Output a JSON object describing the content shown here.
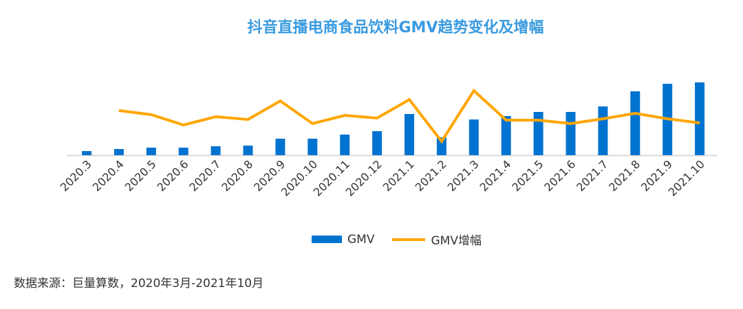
{
  "title": "抖音直播电商食品饮料GMV趋势变化及增幅",
  "source": "数据来源：巨量算数，2020年3月-2021年10月",
  "chart_data": {
    "type": "bar+line",
    "title": "抖音直播电商食品饮料GMV趋势变化及增幅",
    "categories": [
      "2020.3",
      "2020.4",
      "2020.5",
      "2020.6",
      "2020.7",
      "2020.8",
      "2020.9",
      "2020.10",
      "2020.11",
      "2020.12",
      "2021.1",
      "2021.2",
      "2021.3",
      "2021.4",
      "2021.5",
      "2021.6",
      "2021.7",
      "2021.8",
      "2021.9",
      "2021.10"
    ],
    "series": [
      {
        "name": "GMV",
        "type": "bar",
        "color": "#0073d0",
        "values": [
          6,
          9,
          11,
          11,
          13,
          14,
          24,
          24,
          30,
          35,
          60,
          26,
          52,
          57,
          63,
          63,
          71,
          93,
          104,
          106
        ]
      },
      {
        "name": "GMV增幅",
        "type": "line",
        "color": "#ffa600",
        "values": [
          null,
          69,
          63,
          48,
          60,
          56,
          83,
          50,
          62,
          58,
          85,
          24,
          98,
          55,
          55,
          50,
          57,
          65,
          57,
          51
        ]
      }
    ],
    "y_axis_shown": false,
    "grid": false,
    "legend_position": "bottom",
    "note": ""
  }
}
